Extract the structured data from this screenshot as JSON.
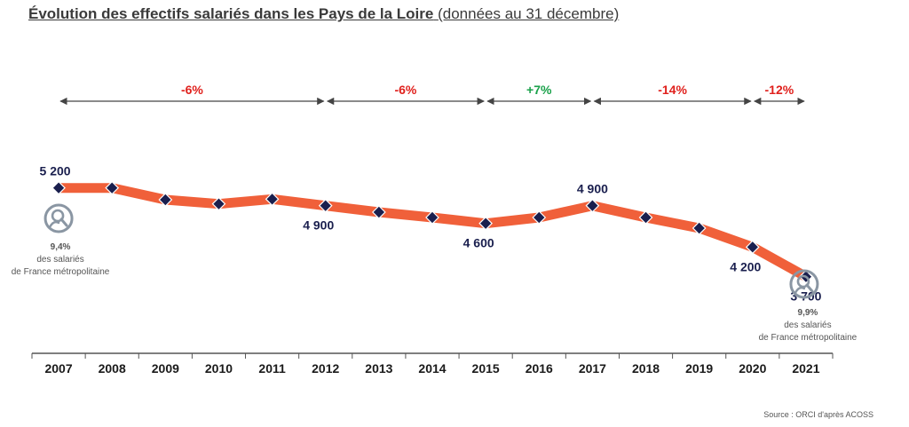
{
  "title": {
    "main": "Évolution des effectifs salariés dans les Pays de la Loire",
    "sub": "(données au 31 décembre)"
  },
  "source": "Source : ORCI d'après ACOSS",
  "colors": {
    "line": "#f0603a",
    "marker": "#1a1f4e",
    "negative": "#e0201c",
    "positive": "#1aa14a",
    "arrow": "#444444",
    "icon": "#8a96a3"
  },
  "chart_data": {
    "type": "line",
    "x": [
      "2007",
      "2008",
      "2009",
      "2010",
      "2011",
      "2012",
      "2013",
      "2014",
      "2015",
      "2016",
      "2017",
      "2018",
      "2019",
      "2020",
      "2021"
    ],
    "series": [
      {
        "values": [
          5200,
          5200,
          5000,
          4930,
          5010,
          4900,
          4790,
          4700,
          4600,
          4700,
          4900,
          4700,
          4520,
          4200,
          3700
        ]
      }
    ],
    "ylim": [
      3500,
      5300
    ],
    "data_labels": [
      {
        "year": "2007",
        "text": "5 200",
        "pos": "above"
      },
      {
        "year": "2012",
        "text": "4 900",
        "pos": "below"
      },
      {
        "year": "2015",
        "text": "4 600",
        "pos": "below"
      },
      {
        "year": "2017",
        "text": "4 900",
        "pos": "above"
      },
      {
        "year": "2020",
        "text": "4 200",
        "pos": "below"
      },
      {
        "year": "2021",
        "text": "3 700",
        "pos": "below"
      }
    ],
    "periods": [
      {
        "from": "2007",
        "to": "2012",
        "label": "-6%",
        "sign": "negative"
      },
      {
        "from": "2012",
        "to": "2015",
        "label": "-6%",
        "sign": "negative"
      },
      {
        "from": "2015",
        "to": "2017",
        "label": "+7%",
        "sign": "positive"
      },
      {
        "from": "2017",
        "to": "2020",
        "label": "-14%",
        "sign": "negative"
      },
      {
        "from": "2020",
        "to": "2021",
        "label": "-12%",
        "sign": "negative"
      }
    ],
    "notes": [
      {
        "year": "2007",
        "pct": "9,4%",
        "line1": "des salariés",
        "line2": "de France métropolitaine"
      },
      {
        "year": "2021",
        "pct": "9,9%",
        "line1": "des salariés",
        "line2": "de France métropolitaine"
      }
    ]
  }
}
